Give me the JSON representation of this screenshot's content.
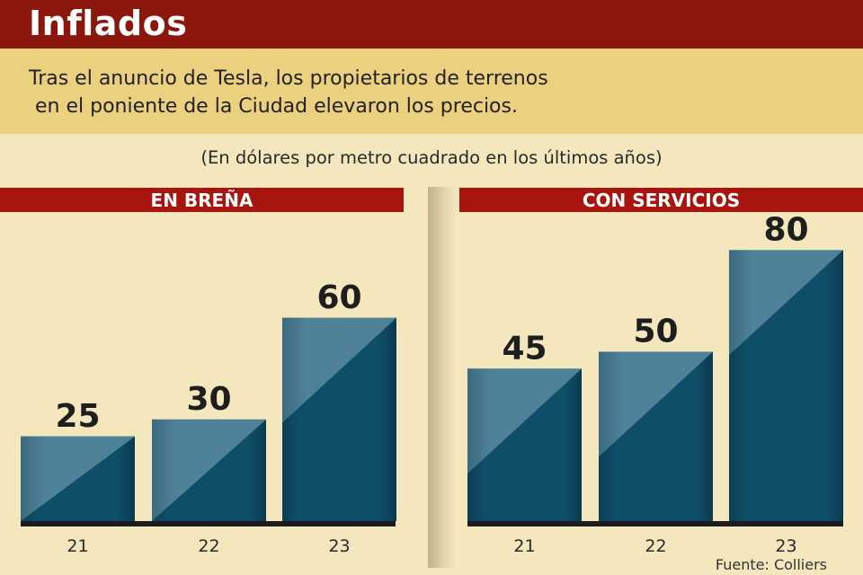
{
  "header": {
    "title": "Inflados",
    "intro_lines": [
      "Tras el anuncio de Tesla, los propietarios de terrenos",
      " en el poniente de la Ciudad elevaron los precios."
    ],
    "subtitle": "(En dólares por metro cuadrado en los últimos años)"
  },
  "source": "Fuente: Colliers",
  "colors": {
    "title_bar": "#8a160c",
    "intro_band": "#ead07f",
    "background": "#f4e6bd",
    "panel_header": "#a8140e",
    "bar_dark": "#0f4d66",
    "bar_light": "#4e7f95"
  },
  "chart_data": [
    {
      "type": "bar",
      "title": "EN BREÑA",
      "categories": [
        "21",
        "22",
        "23"
      ],
      "values": [
        25,
        30,
        60
      ],
      "value_labels": [
        "25",
        "30",
        "60"
      ],
      "xlabel": "",
      "ylabel": "Dólares por metro cuadrado",
      "ylim": [
        0,
        80
      ],
      "grid": false
    },
    {
      "type": "bar",
      "title": "CON SERVICIOS",
      "categories": [
        "21",
        "22",
        "23"
      ],
      "values": [
        45,
        50,
        80
      ],
      "value_labels": [
        "45",
        "50",
        "80"
      ],
      "xlabel": "",
      "ylabel": "Dólares por metro cuadrado",
      "ylim": [
        0,
        80
      ],
      "grid": false
    }
  ]
}
